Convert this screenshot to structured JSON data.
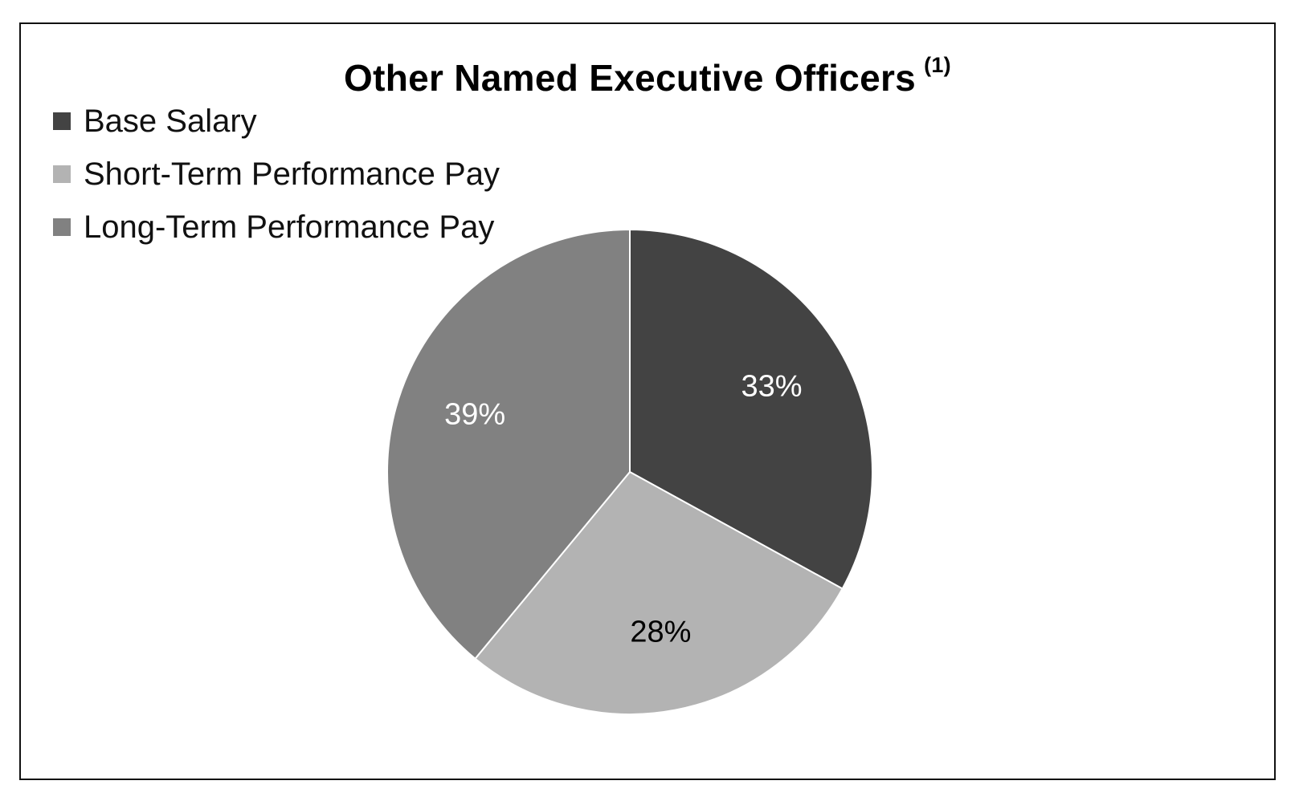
{
  "chart_data": {
    "type": "pie",
    "title": "Other Named Executive Officers",
    "title_note": "(1)",
    "legend_position": "top-left",
    "slices": [
      {
        "name": "Base Salary",
        "value": 33,
        "label": "33%",
        "color": "#434343",
        "label_color": "#ffffff"
      },
      {
        "name": "Short-Term Performance Pay",
        "value": 28,
        "label": "28%",
        "color": "#b3b3b3",
        "label_color": "#000000"
      },
      {
        "name": "Long-Term Performance Pay",
        "value": 39,
        "label": "39%",
        "color": "#818181",
        "label_color": "#ffffff"
      }
    ]
  }
}
